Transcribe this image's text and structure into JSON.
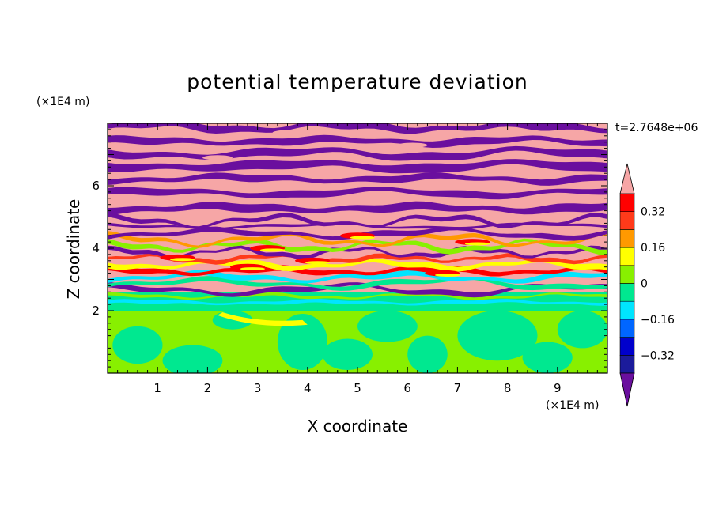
{
  "chart_data": {
    "type": "heatmap",
    "title": "potential temperature deviation",
    "xlabel": "X coordinate",
    "ylabel": "Z coordinate",
    "x_unit": "(×1E4 m)",
    "y_unit": "(×1E4 m)",
    "time_label": "t=2.7648e+06",
    "xlim": [
      0,
      10
    ],
    "ylim": [
      0,
      8
    ],
    "x_ticks": [
      "1",
      "2",
      "3",
      "4",
      "5",
      "6",
      "7",
      "8",
      "9"
    ],
    "y_ticks": [
      "2",
      "4",
      "6"
    ],
    "colorbar": {
      "levels": [
        -0.4,
        -0.32,
        -0.24,
        -0.16,
        -0.08,
        0,
        0.08,
        0.16,
        0.24,
        0.32,
        0.4
      ],
      "tick_labels": [
        "0.32",
        "0.16",
        "0",
        "−0.16",
        "−0.32"
      ],
      "colors": [
        "#6a0f9e",
        "#1b1b9b",
        "#0000cc",
        "#0066ff",
        "#00e5ff",
        "#00e890",
        "#88f000",
        "#ffff00",
        "#ff9900",
        "#ff3a1a",
        "#ff0000",
        "#f6a6a6"
      ]
    },
    "bands": [
      {
        "z0": 0.0,
        "z1": 2.0,
        "pattern": "green-mix"
      },
      {
        "z0": 2.0,
        "z1": 2.6,
        "pattern": "cyan-green"
      },
      {
        "z0": 2.6,
        "z1": 5.0,
        "pattern": "turbulent"
      },
      {
        "z0": 5.0,
        "z1": 8.0,
        "pattern": "layered"
      }
    ]
  }
}
